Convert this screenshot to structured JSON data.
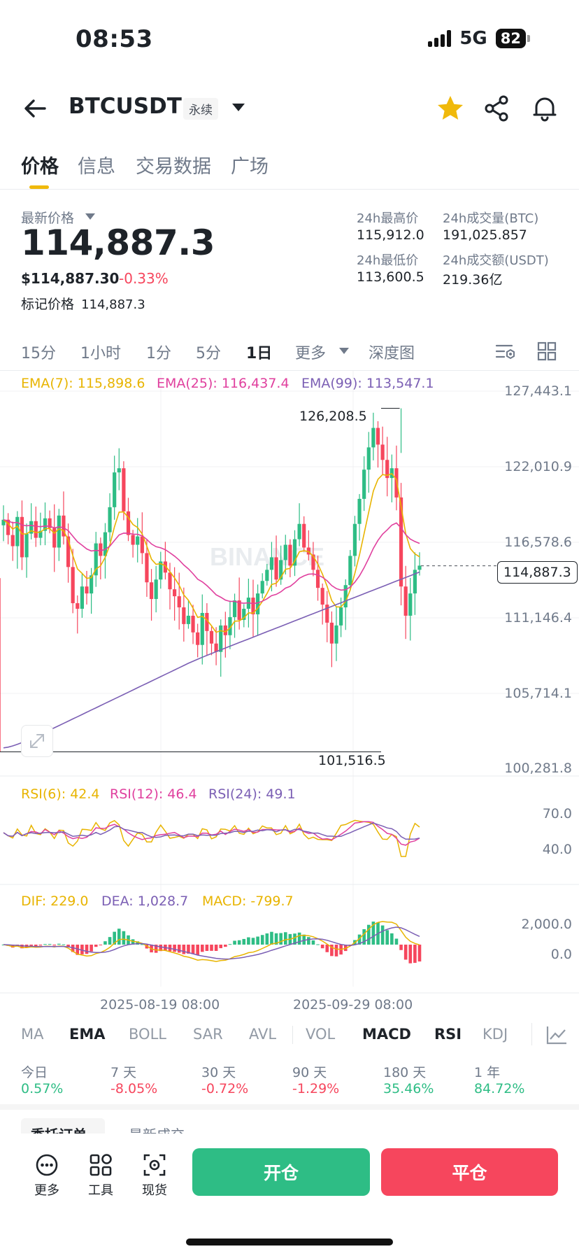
{
  "status_bar": {
    "time": "08:53",
    "network": "5G",
    "battery": "82"
  },
  "header": {
    "symbol": "BTCUSDT",
    "contract_tag": "永续"
  },
  "tabs": [
    "价格",
    "信息",
    "交易数据",
    "广场"
  ],
  "price": {
    "label": "最新价格",
    "last": "114,887.3",
    "usd": "$114,887.30",
    "change": "-0.33%",
    "mark_label": "标记价格",
    "mark_value": "114,887.3"
  },
  "stats": {
    "high_label": "24h最高价",
    "high": "115,912.0",
    "low_label": "24h最低价",
    "low": "113,600.5",
    "vol_btc_label": "24h成交量(BTC)",
    "vol_btc": "191,025.857",
    "vol_usdt_label": "24h成交额(USDT)",
    "vol_usdt": "219.36亿"
  },
  "intervals": [
    "15分",
    "1小时",
    "1分",
    "5分",
    "1日",
    "更多",
    "深度图"
  ],
  "ema_legend": {
    "ema7": "EMA(7): 115,898.6",
    "ema25": "EMA(25): 116,437.4",
    "ema99": "EMA(99): 113,547.1"
  },
  "price_axis": [
    "127,443.1",
    "122,010.9",
    "116,578.6",
    "111,146.4",
    "105,714.1",
    "100,281.8"
  ],
  "current_price_tag": "114,887.3",
  "annotations": {
    "high": "126,208.5",
    "low": "101,516.5"
  },
  "watermark": "BINANCE",
  "rsi_legend": {
    "rsi6": "RSI(6): 42.4",
    "rsi12": "RSI(12): 46.4",
    "rsi24": "RSI(24): 49.1"
  },
  "rsi_axis": [
    "70.0",
    "40.0"
  ],
  "macd_legend": {
    "dif": "DIF: 229.0",
    "dea": "DEA: 1,028.7",
    "macd": "MACD: -799.7"
  },
  "macd_axis": [
    "2,000.0",
    "0.0"
  ],
  "date_axis": [
    "2025-08-19 08:00",
    "2025-09-29 08:00"
  ],
  "indicators": [
    "MA",
    "EMA",
    "BOLL",
    "SAR",
    "AVL",
    "VOL",
    "MACD",
    "RSI",
    "KDJ"
  ],
  "performance": [
    {
      "label": "今日",
      "value": "0.57%",
      "dir": "up"
    },
    {
      "label": "7 天",
      "value": "-8.05%",
      "dir": "down"
    },
    {
      "label": "30 天",
      "value": "-0.72%",
      "dir": "down"
    },
    {
      "label": "90 天",
      "value": "-1.29%",
      "dir": "down"
    },
    {
      "label": "180 天",
      "value": "35.46%",
      "dir": "up"
    },
    {
      "label": "1 年",
      "value": "84.72%",
      "dir": "up"
    }
  ],
  "lower_tabs": [
    "委托订单",
    "最新成交"
  ],
  "bottom_bar": {
    "more": "更多",
    "tools": "工具",
    "spot": "现货",
    "open": "开仓",
    "close": "平仓"
  },
  "colors": {
    "up": "#2ebd85",
    "down": "#f6465d",
    "ema7": "#e8b400",
    "ema25": "#e0409e",
    "ema99": "#7b5fb4",
    "accent": "#f0b90b"
  }
}
